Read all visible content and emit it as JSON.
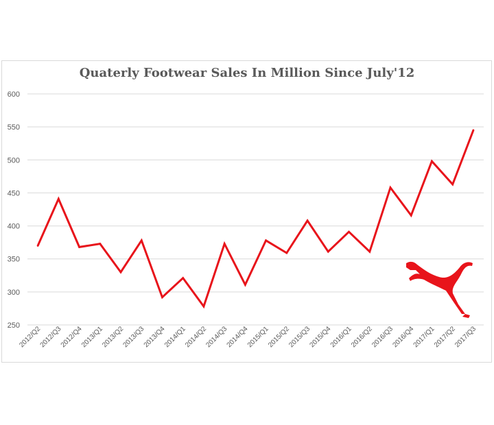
{
  "chart_data": {
    "type": "line",
    "title": "Quaterly Footwear Sales In Million Since July'12",
    "xlabel": "",
    "ylabel": "",
    "ylim": [
      250,
      600
    ],
    "yticks": [
      250,
      300,
      350,
      400,
      450,
      500,
      550,
      600
    ],
    "grid": true,
    "legend": "none",
    "categories": [
      "2012/Q2",
      "2012/Q3",
      "2012/Q4",
      "2013/Q1",
      "2013/Q2",
      "2013/Q3",
      "2013/Q4",
      "2014/Q1",
      "2014/Q2",
      "2014/Q3",
      "2014/Q4",
      "2015/Q1",
      "2015/Q2",
      "2015/Q3",
      "2015/Q4",
      "2016/Q1",
      "2016/Q2",
      "2016/Q3",
      "2016/Q4",
      "2017/Q1",
      "2017/Q2",
      "2017/Q3"
    ],
    "series": [
      {
        "values": [
          370,
          441,
          368,
          373,
          330,
          378,
          292,
          321,
          278,
          373,
          311,
          378,
          359,
          408,
          361,
          391,
          361,
          458,
          416,
          498,
          463,
          545
        ],
        "color": "#e8141b"
      }
    ]
  },
  "logo": {
    "icon": "puma-cat-icon",
    "color": "#e8141b"
  }
}
